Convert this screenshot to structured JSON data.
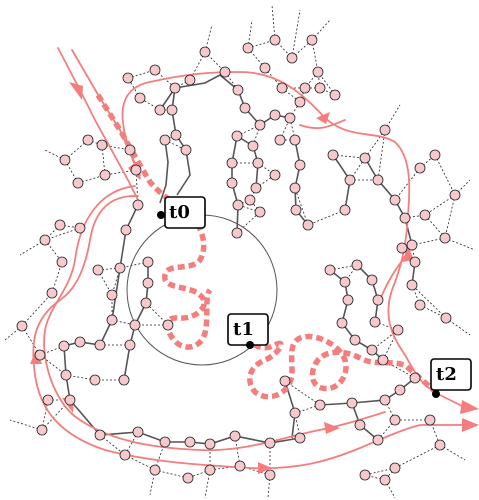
{
  "markers": [
    {
      "id": "t0",
      "label": "t0"
    },
    {
      "id": "t1",
      "label": "t1"
    },
    {
      "id": "t2",
      "label": "t2"
    }
  ],
  "colors": {
    "route": "#f47d7d",
    "node_fill": "#f7c8cc",
    "edge": "#222222"
  }
}
